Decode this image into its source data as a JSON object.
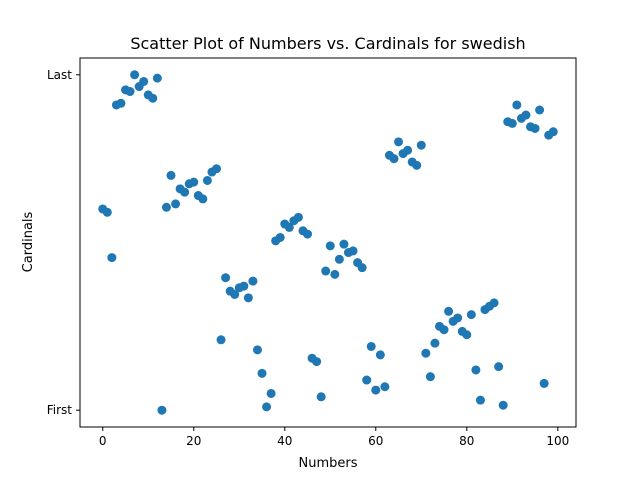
{
  "chart_data": {
    "type": "scatter",
    "title": "Scatter Plot of Numbers vs. Cardinals for swedish",
    "xlabel": "Numbers",
    "ylabel": "Cardinals",
    "xlim": [
      -5,
      104
    ],
    "ylim": [
      -0.05,
      1.05
    ],
    "x_ticks": [
      0,
      20,
      40,
      60,
      80,
      100
    ],
    "y_ticks": [
      {
        "value": 0,
        "label": "First"
      },
      {
        "value": 1,
        "label": "Last"
      }
    ],
    "grid": false,
    "color": "#1f77b4",
    "points": [
      {
        "x": 0,
        "y": 0.6
      },
      {
        "x": 1,
        "y": 0.59
      },
      {
        "x": 2,
        "y": 0.455
      },
      {
        "x": 3,
        "y": 0.91
      },
      {
        "x": 4,
        "y": 0.915
      },
      {
        "x": 5,
        "y": 0.955
      },
      {
        "x": 6,
        "y": 0.95
      },
      {
        "x": 7,
        "y": 1.0
      },
      {
        "x": 8,
        "y": 0.965
      },
      {
        "x": 9,
        "y": 0.98
      },
      {
        "x": 10,
        "y": 0.94
      },
      {
        "x": 11,
        "y": 0.93
      },
      {
        "x": 12,
        "y": 0.99
      },
      {
        "x": 13,
        "y": 0.0
      },
      {
        "x": 14,
        "y": 0.605
      },
      {
        "x": 15,
        "y": 0.7
      },
      {
        "x": 16,
        "y": 0.615
      },
      {
        "x": 17,
        "y": 0.66
      },
      {
        "x": 18,
        "y": 0.65
      },
      {
        "x": 19,
        "y": 0.675
      },
      {
        "x": 20,
        "y": 0.68
      },
      {
        "x": 21,
        "y": 0.64
      },
      {
        "x": 22,
        "y": 0.63
      },
      {
        "x": 23,
        "y": 0.685
      },
      {
        "x": 24,
        "y": 0.71
      },
      {
        "x": 25,
        "y": 0.72
      },
      {
        "x": 26,
        "y": 0.21
      },
      {
        "x": 27,
        "y": 0.395
      },
      {
        "x": 28,
        "y": 0.355
      },
      {
        "x": 29,
        "y": 0.345
      },
      {
        "x": 30,
        "y": 0.365
      },
      {
        "x": 31,
        "y": 0.37
      },
      {
        "x": 32,
        "y": 0.335
      },
      {
        "x": 33,
        "y": 0.385
      },
      {
        "x": 34,
        "y": 0.18
      },
      {
        "x": 35,
        "y": 0.11
      },
      {
        "x": 36,
        "y": 0.01
      },
      {
        "x": 37,
        "y": 0.05
      },
      {
        "x": 38,
        "y": 0.505
      },
      {
        "x": 39,
        "y": 0.515
      },
      {
        "x": 40,
        "y": 0.555
      },
      {
        "x": 41,
        "y": 0.545
      },
      {
        "x": 42,
        "y": 0.565
      },
      {
        "x": 43,
        "y": 0.575
      },
      {
        "x": 44,
        "y": 0.535
      },
      {
        "x": 45,
        "y": 0.525
      },
      {
        "x": 46,
        "y": 0.155
      },
      {
        "x": 47,
        "y": 0.145
      },
      {
        "x": 48,
        "y": 0.04
      },
      {
        "x": 49,
        "y": 0.415
      },
      {
        "x": 50,
        "y": 0.49
      },
      {
        "x": 51,
        "y": 0.405
      },
      {
        "x": 52,
        "y": 0.45
      },
      {
        "x": 53,
        "y": 0.495
      },
      {
        "x": 54,
        "y": 0.47
      },
      {
        "x": 55,
        "y": 0.475
      },
      {
        "x": 56,
        "y": 0.44
      },
      {
        "x": 57,
        "y": 0.425
      },
      {
        "x": 58,
        "y": 0.09
      },
      {
        "x": 59,
        "y": 0.19
      },
      {
        "x": 60,
        "y": 0.06
      },
      {
        "x": 61,
        "y": 0.165
      },
      {
        "x": 62,
        "y": 0.07
      },
      {
        "x": 63,
        "y": 0.76
      },
      {
        "x": 64,
        "y": 0.75
      },
      {
        "x": 65,
        "y": 0.8
      },
      {
        "x": 66,
        "y": 0.765
      },
      {
        "x": 67,
        "y": 0.775
      },
      {
        "x": 68,
        "y": 0.74
      },
      {
        "x": 69,
        "y": 0.73
      },
      {
        "x": 70,
        "y": 0.79
      },
      {
        "x": 71,
        "y": 0.17
      },
      {
        "x": 72,
        "y": 0.1
      },
      {
        "x": 73,
        "y": 0.2
      },
      {
        "x": 74,
        "y": 0.25
      },
      {
        "x": 75,
        "y": 0.24
      },
      {
        "x": 76,
        "y": 0.295
      },
      {
        "x": 77,
        "y": 0.265
      },
      {
        "x": 78,
        "y": 0.275
      },
      {
        "x": 79,
        "y": 0.235
      },
      {
        "x": 80,
        "y": 0.225
      },
      {
        "x": 81,
        "y": 0.285
      },
      {
        "x": 82,
        "y": 0.12
      },
      {
        "x": 83,
        "y": 0.03
      },
      {
        "x": 84,
        "y": 0.3
      },
      {
        "x": 85,
        "y": 0.31
      },
      {
        "x": 86,
        "y": 0.32
      },
      {
        "x": 87,
        "y": 0.13
      },
      {
        "x": 88,
        "y": 0.015
      },
      {
        "x": 89,
        "y": 0.86
      },
      {
        "x": 90,
        "y": 0.855
      },
      {
        "x": 91,
        "y": 0.91
      },
      {
        "x": 92,
        "y": 0.87
      },
      {
        "x": 93,
        "y": 0.88
      },
      {
        "x": 94,
        "y": 0.845
      },
      {
        "x": 95,
        "y": 0.84
      },
      {
        "x": 96,
        "y": 0.895
      },
      {
        "x": 97,
        "y": 0.08
      },
      {
        "x": 98,
        "y": 0.82
      },
      {
        "x": 99,
        "y": 0.83
      }
    ]
  }
}
